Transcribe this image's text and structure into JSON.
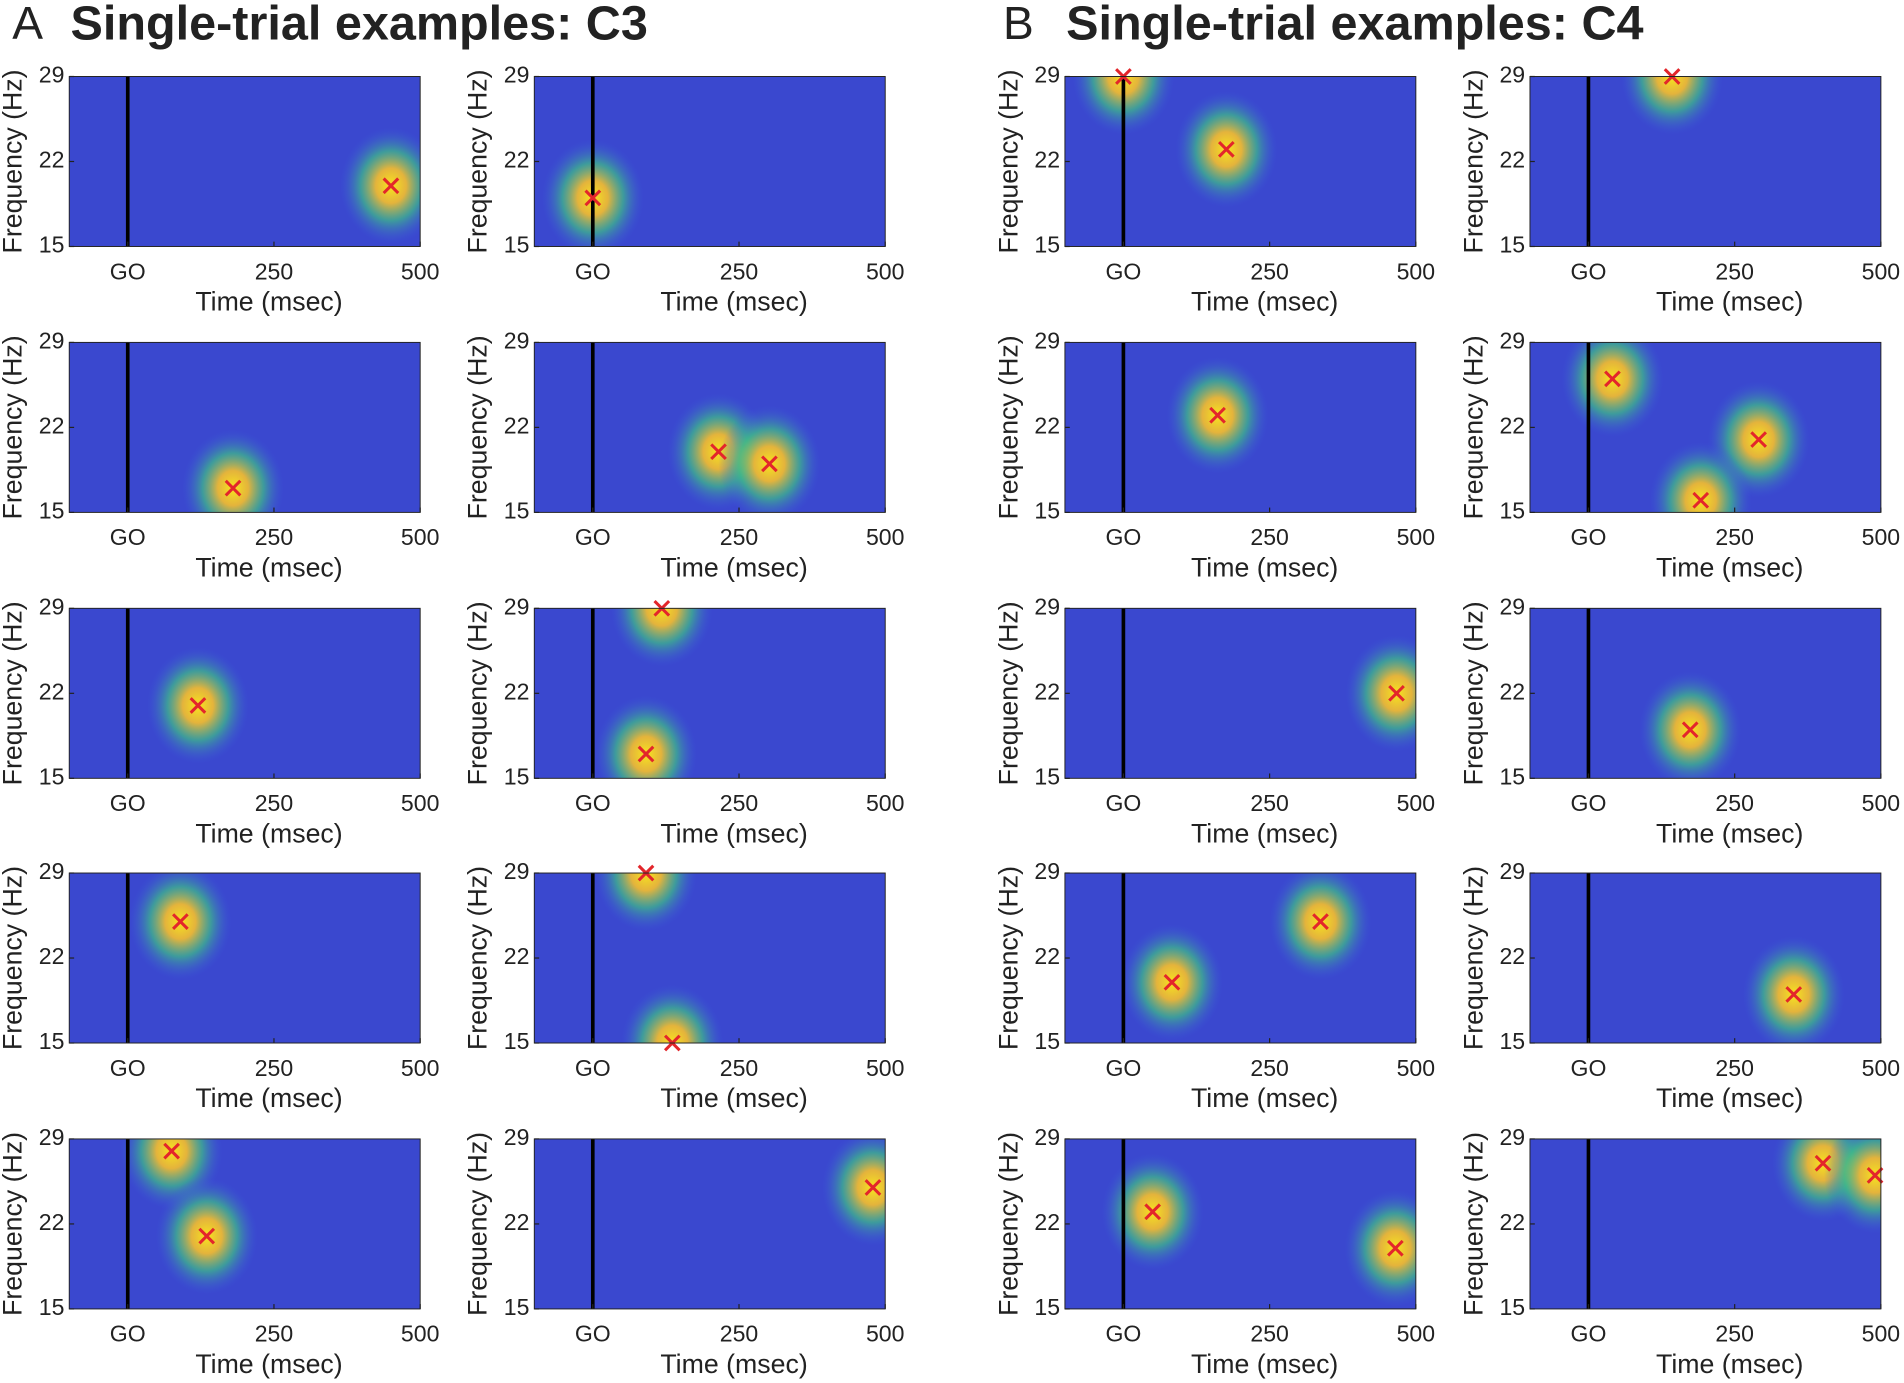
{
  "panels": [
    {
      "letter": "A",
      "title": "Single-trial examples: C3"
    },
    {
      "letter": "B",
      "title": "Single-trial examples: C4"
    }
  ],
  "chart_data": [
    {
      "type": "scatter",
      "x": [
        450
      ],
      "y": [
        20
      ],
      "xlabel": "Time (msec)",
      "ylabel": "Frequency (Hz)",
      "xlim": [
        -100,
        500
      ],
      "ylim": [
        15,
        29
      ],
      "xticks": [
        {
          "value": 0,
          "label": "GO"
        },
        250,
        500
      ],
      "yticks": [
        15,
        22,
        29
      ],
      "color": "#e3262b"
    },
    {
      "type": "scatter",
      "x": [
        0
      ],
      "y": [
        19
      ],
      "xlabel": "Time (msec)",
      "ylabel": "Frequency (Hz)",
      "xlim": [
        -100,
        500
      ],
      "ylim": [
        15,
        29
      ],
      "xticks": [
        {
          "value": 0,
          "label": "GO"
        },
        250,
        500
      ],
      "yticks": [
        15,
        22,
        29
      ],
      "color": "#e3262b"
    },
    {
      "type": "scatter",
      "x": [
        180
      ],
      "y": [
        17
      ],
      "xlabel": "Time (msec)",
      "ylabel": "Frequency (Hz)",
      "xlim": [
        -100,
        500
      ],
      "ylim": [
        15,
        29
      ],
      "xticks": [
        {
          "value": 0,
          "label": "GO"
        },
        250,
        500
      ],
      "yticks": [
        15,
        22,
        29
      ],
      "color": "#e3262b"
    },
    {
      "type": "scatter",
      "x": [
        215,
        302
      ],
      "y": [
        20,
        19
      ],
      "xlabel": "Time (msec)",
      "ylabel": "Frequency (Hz)",
      "xlim": [
        -100,
        500
      ],
      "ylim": [
        15,
        29
      ],
      "xticks": [
        {
          "value": 0,
          "label": "GO"
        },
        250,
        500
      ],
      "yticks": [
        15,
        22,
        29
      ],
      "color": "#e3262b"
    },
    {
      "type": "scatter",
      "x": [
        120
      ],
      "y": [
        21
      ],
      "xlabel": "Time (msec)",
      "ylabel": "Frequency (Hz)",
      "xlim": [
        -100,
        500
      ],
      "ylim": [
        15,
        29
      ],
      "xticks": [
        {
          "value": 0,
          "label": "GO"
        },
        250,
        500
      ],
      "yticks": [
        15,
        22,
        29
      ],
      "color": "#e3262b"
    },
    {
      "type": "scatter",
      "x": [
        118,
        91
      ],
      "y": [
        29,
        17
      ],
      "xlabel": "Time (msec)",
      "ylabel": "Frequency (Hz)",
      "xlim": [
        -100,
        500
      ],
      "ylim": [
        15,
        29
      ],
      "xticks": [
        {
          "value": 0,
          "label": "GO"
        },
        250,
        500
      ],
      "yticks": [
        15,
        22,
        29
      ],
      "color": "#e3262b"
    },
    {
      "type": "scatter",
      "x": [
        90
      ],
      "y": [
        25
      ],
      "xlabel": "Time (msec)",
      "ylabel": "Frequency (Hz)",
      "xlim": [
        -100,
        500
      ],
      "ylim": [
        15,
        29
      ],
      "xticks": [
        {
          "value": 0,
          "label": "GO"
        },
        250,
        500
      ],
      "yticks": [
        15,
        22,
        29
      ],
      "color": "#e3262b"
    },
    {
      "type": "scatter",
      "x": [
        91,
        136
      ],
      "y": [
        29,
        15
      ],
      "xlabel": "Time (msec)",
      "ylabel": "Frequency (Hz)",
      "xlim": [
        -100,
        500
      ],
      "ylim": [
        15,
        29
      ],
      "xticks": [
        {
          "value": 0,
          "label": "GO"
        },
        250,
        500
      ],
      "yticks": [
        15,
        22,
        29
      ],
      "color": "#e3262b"
    },
    {
      "type": "scatter",
      "x": [
        75,
        135
      ],
      "y": [
        28,
        21
      ],
      "xlabel": "Time (msec)",
      "ylabel": "Frequency (Hz)",
      "xlim": [
        -100,
        500
      ],
      "ylim": [
        15,
        29
      ],
      "xticks": [
        {
          "value": 0,
          "label": "GO"
        },
        250,
        500
      ],
      "yticks": [
        15,
        22,
        29
      ],
      "color": "#e3262b"
    },
    {
      "type": "scatter",
      "x": [
        479
      ],
      "y": [
        25
      ],
      "xlabel": "Time (msec)",
      "ylabel": "Frequency (Hz)",
      "xlim": [
        -100,
        500
      ],
      "ylim": [
        15,
        29
      ],
      "xticks": [
        {
          "value": 0,
          "label": "GO"
        },
        250,
        500
      ],
      "yticks": [
        15,
        22,
        29
      ],
      "color": "#e3262b"
    },
    {
      "type": "scatter",
      "x": [
        0,
        176
      ],
      "y": [
        29,
        23
      ],
      "xlabel": "Time (msec)",
      "ylabel": "Frequency (Hz)",
      "xlim": [
        -100,
        500
      ],
      "ylim": [
        15,
        29
      ],
      "xticks": [
        {
          "value": 0,
          "label": "GO"
        },
        250,
        500
      ],
      "yticks": [
        15,
        22,
        29
      ],
      "color": "#e3262b"
    },
    {
      "type": "scatter",
      "x": [
        143
      ],
      "y": [
        29
      ],
      "xlabel": "Time (msec)",
      "ylabel": "Frequency (Hz)",
      "xlim": [
        -100,
        500
      ],
      "ylim": [
        15,
        29
      ],
      "xticks": [
        {
          "value": 0,
          "label": "GO"
        },
        250,
        500
      ],
      "yticks": [
        15,
        22,
        29
      ],
      "color": "#e3262b"
    },
    {
      "type": "scatter",
      "x": [
        161
      ],
      "y": [
        23
      ],
      "xlabel": "Time (msec)",
      "ylabel": "Frequency (Hz)",
      "xlim": [
        -100,
        500
      ],
      "ylim": [
        15,
        29
      ],
      "xticks": [
        {
          "value": 0,
          "label": "GO"
        },
        250,
        500
      ],
      "yticks": [
        15,
        22,
        29
      ],
      "color": "#e3262b"
    },
    {
      "type": "scatter",
      "x": [
        41,
        291,
        192
      ],
      "y": [
        26,
        21,
        16
      ],
      "xlabel": "Time (msec)",
      "ylabel": "Frequency (Hz)",
      "xlim": [
        -100,
        500
      ],
      "ylim": [
        15,
        29
      ],
      "xticks": [
        {
          "value": 0,
          "label": "GO"
        },
        250,
        500
      ],
      "yticks": [
        15,
        22,
        29
      ],
      "color": "#e3262b"
    },
    {
      "type": "scatter",
      "x": [
        467
      ],
      "y": [
        22
      ],
      "xlabel": "Time (msec)",
      "ylabel": "Frequency (Hz)",
      "xlim": [
        -100,
        500
      ],
      "ylim": [
        15,
        29
      ],
      "xticks": [
        {
          "value": 0,
          "label": "GO"
        },
        250,
        500
      ],
      "yticks": [
        15,
        22,
        29
      ],
      "color": "#e3262b"
    },
    {
      "type": "scatter",
      "x": [
        174
      ],
      "y": [
        19
      ],
      "xlabel": "Time (msec)",
      "ylabel": "Frequency (Hz)",
      "xlim": [
        -100,
        500
      ],
      "ylim": [
        15,
        29
      ],
      "xticks": [
        {
          "value": 0,
          "label": "GO"
        },
        250,
        500
      ],
      "yticks": [
        15,
        22,
        29
      ],
      "color": "#e3262b"
    },
    {
      "type": "scatter",
      "x": [
        83,
        337
      ],
      "y": [
        20,
        25
      ],
      "xlabel": "Time (msec)",
      "ylabel": "Frequency (Hz)",
      "xlim": [
        -100,
        500
      ],
      "ylim": [
        15,
        29
      ],
      "xticks": [
        {
          "value": 0,
          "label": "GO"
        },
        250,
        500
      ],
      "yticks": [
        15,
        22,
        29
      ],
      "color": "#e3262b"
    },
    {
      "type": "scatter",
      "x": [
        351
      ],
      "y": [
        19
      ],
      "xlabel": "Time (msec)",
      "ylabel": "Frequency (Hz)",
      "xlim": [
        -100,
        500
      ],
      "ylim": [
        15,
        29
      ],
      "xticks": [
        {
          "value": 0,
          "label": "GO"
        },
        250,
        500
      ],
      "yticks": [
        15,
        22,
        29
      ],
      "color": "#e3262b"
    },
    {
      "type": "scatter",
      "x": [
        50,
        465
      ],
      "y": [
        23,
        20
      ],
      "xlabel": "Time (msec)",
      "ylabel": "Frequency (Hz)",
      "xlim": [
        -100,
        500
      ],
      "ylim": [
        15,
        29
      ],
      "xticks": [
        {
          "value": 0,
          "label": "GO"
        },
        250,
        500
      ],
      "yticks": [
        15,
        22,
        29
      ],
      "color": "#e3262b"
    },
    {
      "type": "scatter",
      "x": [
        401,
        490
      ],
      "y": [
        27,
        26
      ],
      "xlabel": "Time (msec)",
      "ylabel": "Frequency (Hz)",
      "xlim": [
        -100,
        500
      ],
      "ylim": [
        15,
        29
      ],
      "xticks": [
        {
          "value": 0,
          "label": "GO"
        },
        250,
        500
      ],
      "yticks": [
        15,
        22,
        29
      ],
      "color": "#e3262b"
    }
  ]
}
